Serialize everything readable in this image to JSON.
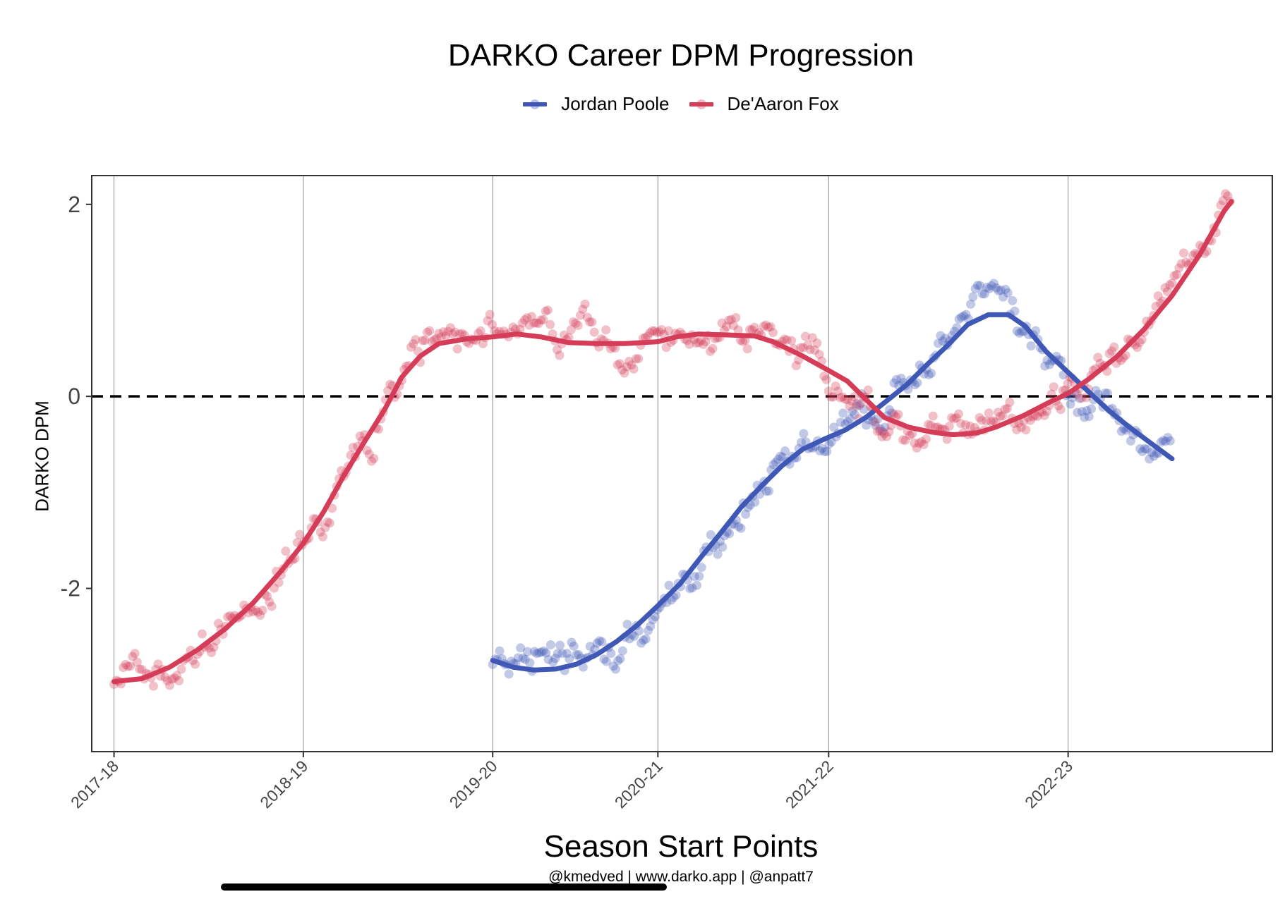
{
  "chart_data": {
    "type": "scatter",
    "title": "DARKO Career DPM Progression",
    "xlabel": "Season Start Points",
    "ylabel": "DARKO DPM",
    "caption": "@kmedved | www.darko.app | @anpatt7",
    "x_ticks": [
      "2017-18",
      "2018-19",
      "2019-20",
      "2020-21",
      "2021-22",
      "2022-23"
    ],
    "x_tick_values": [
      0,
      102,
      204,
      293,
      385,
      514
    ],
    "xlim": [
      -12,
      624
    ],
    "ylim": [
      -3.7,
      2.3
    ],
    "y_ticks": [
      2,
      0,
      -2
    ],
    "y_tick_labels": [
      "2",
      "0",
      "-2"
    ],
    "reference_line": {
      "y": 0,
      "style": "dashed"
    },
    "grid": "vertical lines at season starts",
    "legend_position": "top",
    "series": [
      {
        "name": "Jordan Poole",
        "color": "#3f57b5",
        "trend": [
          [
            204,
            -2.75
          ],
          [
            215,
            -2.82
          ],
          [
            226,
            -2.85
          ],
          [
            238,
            -2.84
          ],
          [
            249,
            -2.79
          ],
          [
            260,
            -2.69
          ],
          [
            271,
            -2.55
          ],
          [
            282,
            -2.38
          ],
          [
            293,
            -2.18
          ],
          [
            305,
            -1.95
          ],
          [
            316,
            -1.68
          ],
          [
            327,
            -1.42
          ],
          [
            338,
            -1.15
          ],
          [
            349,
            -0.93
          ],
          [
            360,
            -0.72
          ],
          [
            371,
            -0.55
          ],
          [
            382,
            -0.45
          ],
          [
            394,
            -0.35
          ],
          [
            405,
            -0.22
          ],
          [
            416,
            -0.05
          ],
          [
            427,
            0.12
          ],
          [
            438,
            0.33
          ],
          [
            449,
            0.53
          ],
          [
            460,
            0.75
          ],
          [
            471,
            0.85
          ],
          [
            482,
            0.85
          ],
          [
            491,
            0.73
          ],
          [
            502,
            0.47
          ],
          [
            514,
            0.25
          ],
          [
            525,
            0.05
          ],
          [
            536,
            -0.15
          ],
          [
            547,
            -0.32
          ],
          [
            556,
            -0.45
          ],
          [
            563,
            -0.55
          ],
          [
            570,
            -0.65
          ]
        ]
      },
      {
        "name": "De'Aaron Fox",
        "color": "#d53c58",
        "trend": [
          [
            0,
            -2.97
          ],
          [
            15,
            -2.94
          ],
          [
            30,
            -2.82
          ],
          [
            45,
            -2.64
          ],
          [
            60,
            -2.42
          ],
          [
            75,
            -2.15
          ],
          [
            90,
            -1.82
          ],
          [
            102,
            -1.53
          ],
          [
            113,
            -1.2
          ],
          [
            124,
            -0.82
          ],
          [
            135,
            -0.47
          ],
          [
            146,
            -0.13
          ],
          [
            155,
            0.2
          ],
          [
            165,
            0.42
          ],
          [
            175,
            0.55
          ],
          [
            190,
            0.6
          ],
          [
            204,
            0.62
          ],
          [
            217,
            0.65
          ],
          [
            230,
            0.62
          ],
          [
            245,
            0.56
          ],
          [
            260,
            0.55
          ],
          [
            275,
            0.55
          ],
          [
            293,
            0.57
          ],
          [
            303,
            0.62
          ],
          [
            315,
            0.65
          ],
          [
            330,
            0.64
          ],
          [
            345,
            0.63
          ],
          [
            355,
            0.57
          ],
          [
            370,
            0.43
          ],
          [
            385,
            0.27
          ],
          [
            395,
            0.16
          ],
          [
            405,
            -0.03
          ],
          [
            415,
            -0.22
          ],
          [
            428,
            -0.32
          ],
          [
            440,
            -0.37
          ],
          [
            452,
            -0.4
          ],
          [
            465,
            -0.38
          ],
          [
            475,
            -0.32
          ],
          [
            490,
            -0.2
          ],
          [
            505,
            -0.05
          ],
          [
            514,
            0.03
          ],
          [
            525,
            0.18
          ],
          [
            540,
            0.41
          ],
          [
            555,
            0.7
          ],
          [
            570,
            1.05
          ],
          [
            585,
            1.48
          ],
          [
            598,
            1.93
          ],
          [
            602,
            2.03
          ]
        ]
      }
    ]
  }
}
